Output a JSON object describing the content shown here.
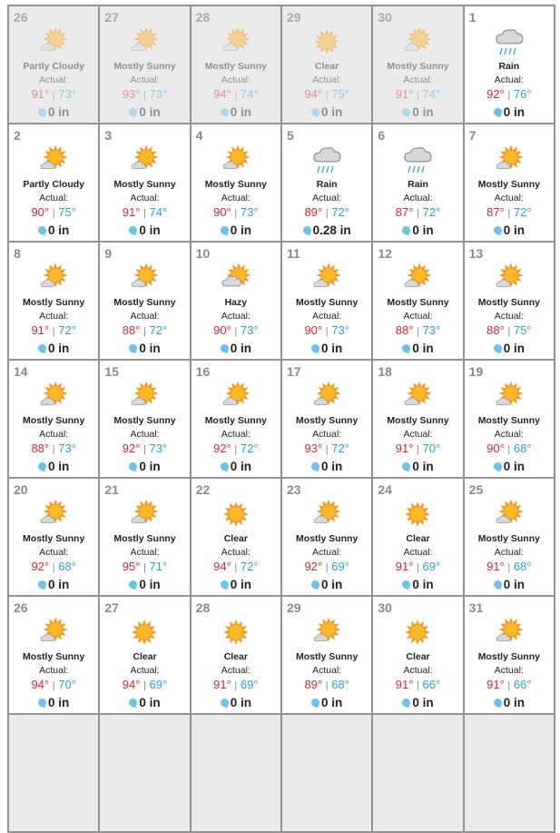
{
  "labels": {
    "actual": "Actual:",
    "unit": "in"
  },
  "colors": {
    "high": "#d9262e",
    "low": "#2a9fd6",
    "sun": "#f7931e",
    "sun_core": "#fbb829",
    "cloud": "#d9d9d9",
    "rain": "#2aa4dc"
  },
  "days": [
    {
      "day": "26",
      "other": true,
      "cond": "Partly Cloudy",
      "icon": "sun-cloud-icon",
      "hi": "91°",
      "lo": "73°",
      "precip": "0 in"
    },
    {
      "day": "27",
      "other": true,
      "cond": "Mostly Sunny",
      "icon": "sun-cloud-icon",
      "hi": "93°",
      "lo": "73°",
      "precip": "0 in"
    },
    {
      "day": "28",
      "other": true,
      "cond": "Mostly Sunny",
      "icon": "sun-cloud-icon",
      "hi": "94°",
      "lo": "74°",
      "precip": "0 in"
    },
    {
      "day": "29",
      "other": true,
      "cond": "Clear",
      "icon": "sun-icon",
      "hi": "94°",
      "lo": "75°",
      "precip": "0 in"
    },
    {
      "day": "30",
      "other": true,
      "cond": "Mostly Sunny",
      "icon": "sun-cloud-icon",
      "hi": "91°",
      "lo": "74°",
      "precip": "0 in"
    },
    {
      "day": "1",
      "cond": "Rain",
      "icon": "rain-icon",
      "hi": "92°",
      "lo": "76°",
      "precip": "0 in"
    },
    {
      "day": "2",
      "cond": "Partly Cloudy",
      "icon": "sun-cloud-icon",
      "hi": "90°",
      "lo": "75°",
      "precip": "0 in"
    },
    {
      "day": "3",
      "cond": "Mostly Sunny",
      "icon": "sun-cloud-icon",
      "hi": "91°",
      "lo": "74°",
      "precip": "0 in"
    },
    {
      "day": "4",
      "cond": "Mostly Sunny",
      "icon": "sun-cloud-icon",
      "hi": "90°",
      "lo": "73°",
      "precip": "0 in"
    },
    {
      "day": "5",
      "cond": "Rain",
      "icon": "rain-icon",
      "hi": "89°",
      "lo": "72°",
      "precip": "0.28 in"
    },
    {
      "day": "6",
      "cond": "Rain",
      "icon": "rain-icon",
      "hi": "87°",
      "lo": "72°",
      "precip": "0 in"
    },
    {
      "day": "7",
      "cond": "Mostly Sunny",
      "icon": "sun-cloud-icon",
      "hi": "87°",
      "lo": "72°",
      "precip": "0 in"
    },
    {
      "day": "8",
      "cond": "Mostly Sunny",
      "icon": "sun-cloud-icon",
      "hi": "91°",
      "lo": "72°",
      "precip": "0 in"
    },
    {
      "day": "9",
      "cond": "Mostly Sunny",
      "icon": "sun-cloud-icon",
      "hi": "88°",
      "lo": "72°",
      "precip": "0 in"
    },
    {
      "day": "10",
      "cond": "Hazy",
      "icon": "hazy-icon",
      "hi": "90°",
      "lo": "73°",
      "precip": "0 in"
    },
    {
      "day": "11",
      "cond": "Mostly Sunny",
      "icon": "sun-cloud-icon",
      "hi": "90°",
      "lo": "73°",
      "precip": "0 in"
    },
    {
      "day": "12",
      "cond": "Mostly Sunny",
      "icon": "sun-cloud-icon",
      "hi": "88°",
      "lo": "73°",
      "precip": "0 in"
    },
    {
      "day": "13",
      "cond": "Mostly Sunny",
      "icon": "sun-cloud-icon",
      "hi": "88°",
      "lo": "75°",
      "precip": "0 in"
    },
    {
      "day": "14",
      "cond": "Mostly Sunny",
      "icon": "sun-cloud-icon",
      "hi": "88°",
      "lo": "73°",
      "precip": "0 in"
    },
    {
      "day": "15",
      "cond": "Mostly Sunny",
      "icon": "sun-cloud-icon",
      "hi": "92°",
      "lo": "73°",
      "precip": "0 in"
    },
    {
      "day": "16",
      "cond": "Mostly Sunny",
      "icon": "sun-cloud-icon",
      "hi": "92°",
      "lo": "72°",
      "precip": "0 in"
    },
    {
      "day": "17",
      "cond": "Mostly Sunny",
      "icon": "sun-cloud-icon",
      "hi": "93°",
      "lo": "72°",
      "precip": "0 in"
    },
    {
      "day": "18",
      "cond": "Mostly Sunny",
      "icon": "sun-cloud-icon",
      "hi": "91°",
      "lo": "70°",
      "precip": "0 in"
    },
    {
      "day": "19",
      "cond": "Mostly Sunny",
      "icon": "sun-cloud-icon",
      "hi": "90°",
      "lo": "68°",
      "precip": "0 in"
    },
    {
      "day": "20",
      "cond": "Mostly Sunny",
      "icon": "sun-cloud-icon",
      "hi": "92°",
      "lo": "68°",
      "precip": "0 in"
    },
    {
      "day": "21",
      "cond": "Mostly Sunny",
      "icon": "sun-cloud-icon",
      "hi": "95°",
      "lo": "71°",
      "precip": "0 in"
    },
    {
      "day": "22",
      "cond": "Clear",
      "icon": "sun-icon",
      "hi": "94°",
      "lo": "72°",
      "precip": "0 in"
    },
    {
      "day": "23",
      "cond": "Mostly Sunny",
      "icon": "sun-cloud-icon",
      "hi": "92°",
      "lo": "69°",
      "precip": "0 in"
    },
    {
      "day": "24",
      "cond": "Clear",
      "icon": "sun-icon",
      "hi": "91°",
      "lo": "69°",
      "precip": "0 in"
    },
    {
      "day": "25",
      "cond": "Mostly Sunny",
      "icon": "sun-cloud-icon",
      "hi": "91°",
      "lo": "68°",
      "precip": "0 in"
    },
    {
      "day": "26",
      "cond": "Mostly Sunny",
      "icon": "sun-cloud-icon",
      "hi": "94°",
      "lo": "70°",
      "precip": "0 in"
    },
    {
      "day": "27",
      "cond": "Clear",
      "icon": "sun-icon",
      "hi": "94°",
      "lo": "69°",
      "precip": "0 in"
    },
    {
      "day": "28",
      "cond": "Clear",
      "icon": "sun-icon",
      "hi": "91°",
      "lo": "69°",
      "precip": "0 in"
    },
    {
      "day": "29",
      "cond": "Mostly Sunny",
      "icon": "sun-cloud-icon",
      "hi": "89°",
      "lo": "68°",
      "precip": "0 in"
    },
    {
      "day": "30",
      "cond": "Clear",
      "icon": "sun-icon",
      "hi": "91°",
      "lo": "66°",
      "precip": "0 in"
    },
    {
      "day": "31",
      "cond": "Mostly Sunny",
      "icon": "sun-cloud-icon",
      "hi": "91°",
      "lo": "66°",
      "precip": "0 in"
    }
  ]
}
